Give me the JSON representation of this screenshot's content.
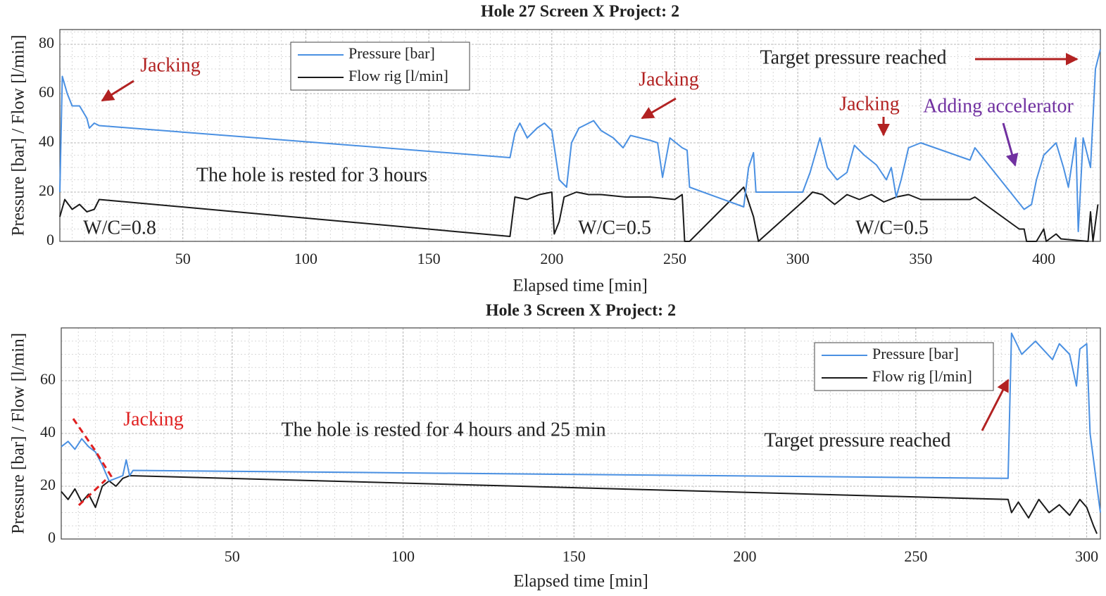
{
  "chart_data": [
    {
      "type": "line",
      "title": "Hole 27 Screen X Project: 2",
      "x_label": "Elapsed time [min]",
      "y_label": "Pressure [bar] / Flow [l/min]",
      "xlim": [
        0,
        423
      ],
      "ylim": [
        0,
        86
      ],
      "xticks": [
        50,
        100,
        150,
        200,
        250,
        300,
        350,
        400
      ],
      "yticks": [
        0,
        20,
        40,
        60,
        80
      ],
      "grid": true,
      "legend": "upper left",
      "series": [
        {
          "name": "Pressure [bar]",
          "color": "#4a90e2",
          "x": [
            0,
            1,
            3,
            5,
            8,
            11,
            12,
            14,
            16,
            183,
            185,
            187,
            190,
            194,
            197,
            200,
            203,
            206,
            208,
            211,
            217,
            220,
            225,
            229,
            232,
            240,
            243,
            245,
            248,
            253,
            255,
            256,
            278,
            280,
            282,
            283,
            302,
            305,
            309,
            312,
            316,
            320,
            323,
            327,
            332,
            336,
            338,
            340,
            342,
            345,
            350,
            370,
            372,
            392,
            395,
            397,
            400,
            405,
            408,
            410,
            413,
            414,
            416,
            419,
            421,
            423
          ],
          "values": [
            20,
            67,
            60,
            55,
            55,
            50,
            46,
            48,
            47,
            34,
            44,
            48,
            42,
            46,
            48,
            45,
            25,
            22,
            40,
            46,
            49,
            45,
            42,
            38,
            43,
            41,
            40,
            26,
            42,
            38,
            37,
            22,
            14,
            30,
            36,
            20,
            20,
            28,
            42,
            30,
            25,
            28,
            39,
            35,
            31,
            25,
            30,
            18,
            25,
            38,
            40,
            33,
            38,
            13,
            15,
            25,
            35,
            40,
            30,
            22,
            42,
            4,
            42,
            30,
            70,
            78
          ]
        },
        {
          "name": "Flow rig [l/min]",
          "color": "#1a1a1a",
          "x": [
            0,
            2,
            5,
            8,
            11,
            14,
            16,
            183,
            185,
            190,
            195,
            200,
            201,
            203,
            205,
            210,
            215,
            220,
            230,
            240,
            250,
            253,
            254,
            256,
            278,
            282,
            284,
            303,
            306,
            310,
            315,
            320,
            325,
            330,
            335,
            340,
            345,
            350,
            370,
            372,
            390,
            392,
            393,
            397,
            400,
            401,
            405,
            407,
            418,
            419,
            420,
            422
          ],
          "values": [
            10,
            17,
            13,
            15,
            12,
            13,
            17,
            2,
            18,
            17,
            19,
            20,
            3,
            8,
            18,
            20,
            19,
            19,
            18,
            18,
            17,
            19,
            0,
            0,
            22,
            10,
            0,
            17,
            20,
            19,
            15,
            19,
            17,
            19,
            16,
            18,
            19,
            17,
            17,
            18,
            5,
            5,
            0,
            0,
            5,
            0,
            3,
            1,
            0,
            12,
            0,
            15
          ]
        }
      ],
      "annotations": [
        {
          "text": "Jacking",
          "color": "#b22222"
        },
        {
          "text": "Jacking",
          "color": "#b22222"
        },
        {
          "text": "Target pressure reached",
          "color": "#222222"
        },
        {
          "text": "Jacking",
          "color": "#b22222"
        },
        {
          "text": "Adding accelerator",
          "color": "#7030a0"
        },
        {
          "text": "The hole is rested for 3 hours",
          "color": "#222222"
        },
        {
          "text": "W/C=0.8",
          "color": "#222222"
        },
        {
          "text": "W/C=0.5",
          "color": "#222222"
        },
        {
          "text": "W/C=0.5",
          "color": "#222222"
        }
      ]
    },
    {
      "type": "line",
      "title": "Hole 3 Screen X Project: 2",
      "x_label": "Elapsed time [min]",
      "y_label": "Pressure [bar] / Flow [l/min]",
      "xlim": [
        0,
        304
      ],
      "ylim": [
        0,
        80
      ],
      "xticks": [
        50,
        100,
        150,
        200,
        250,
        300
      ],
      "yticks": [
        0,
        20,
        40,
        60
      ],
      "grid": true,
      "legend": "upper right",
      "series": [
        {
          "name": "Pressure [bar]",
          "color": "#4a90e2",
          "x": [
            0,
            2,
            4,
            6,
            8,
            10,
            12,
            14,
            16,
            18,
            19,
            20,
            21,
            277,
            278,
            281,
            285,
            290,
            292,
            295,
            297,
            298,
            300,
            301,
            302,
            303,
            304
          ],
          "values": [
            35,
            37,
            34,
            38,
            35,
            33,
            28,
            22,
            23,
            24,
            30,
            24,
            26,
            23,
            78,
            70,
            75,
            68,
            74,
            70,
            58,
            72,
            74,
            40,
            30,
            20,
            10
          ]
        },
        {
          "name": "Flow rig [l/min]",
          "color": "#1a1a1a",
          "x": [
            0,
            2,
            4,
            6,
            8,
            10,
            12,
            14,
            16,
            18,
            20,
            277,
            278,
            280,
            283,
            286,
            289,
            292,
            295,
            298,
            300,
            302,
            303
          ],
          "values": [
            18,
            15,
            19,
            14,
            17,
            12,
            20,
            22,
            20,
            23,
            24,
            15,
            10,
            14,
            8,
            15,
            10,
            13,
            9,
            15,
            12,
            5,
            2
          ]
        }
      ],
      "annotations": [
        {
          "text": "Jacking",
          "color": "#e02020"
        },
        {
          "text": "The hole is rested for 4 hours and 25 min",
          "color": "#222222"
        },
        {
          "text": "Target pressure reached",
          "color": "#222222"
        }
      ]
    }
  ]
}
